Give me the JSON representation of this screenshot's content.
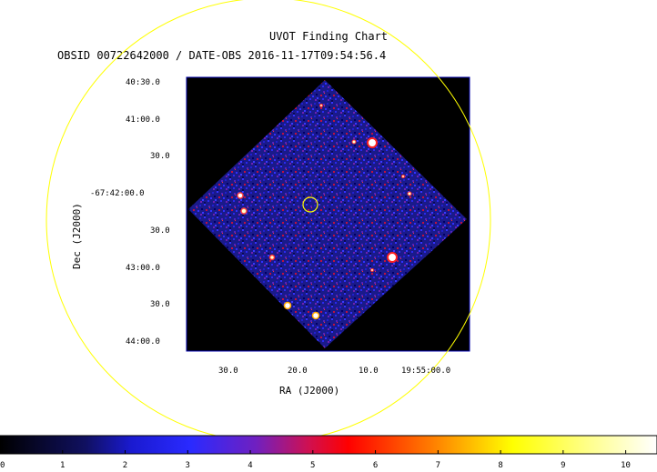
{
  "chart": {
    "title": "UVOT Finding Chart",
    "subtitle": "OBSID 00722642000 / DATE-OBS 2016-11-17T09:54:56.4",
    "xlabel": "RA (J2000)",
    "ylabel": "Dec (J2000)",
    "dec_ticks": [
      "40:30.0",
      "41:00.0",
      "30.0",
      "-67:42:00.0",
      "30.0",
      "43:00.0",
      "30.0",
      "44:00.0"
    ],
    "ra_ticks": [
      "30.0",
      "20.0",
      "10.0",
      "19:55:00.0"
    ],
    "colorbar_ticks": [
      "0",
      "1",
      "2",
      "3",
      "4",
      "5",
      "6",
      "7",
      "8",
      "9",
      "10"
    ],
    "colorbar_range": [
      0,
      10.5
    ],
    "colors": {
      "background": "#000000",
      "frame": "#0000aa",
      "circle": "#ffff00"
    }
  }
}
